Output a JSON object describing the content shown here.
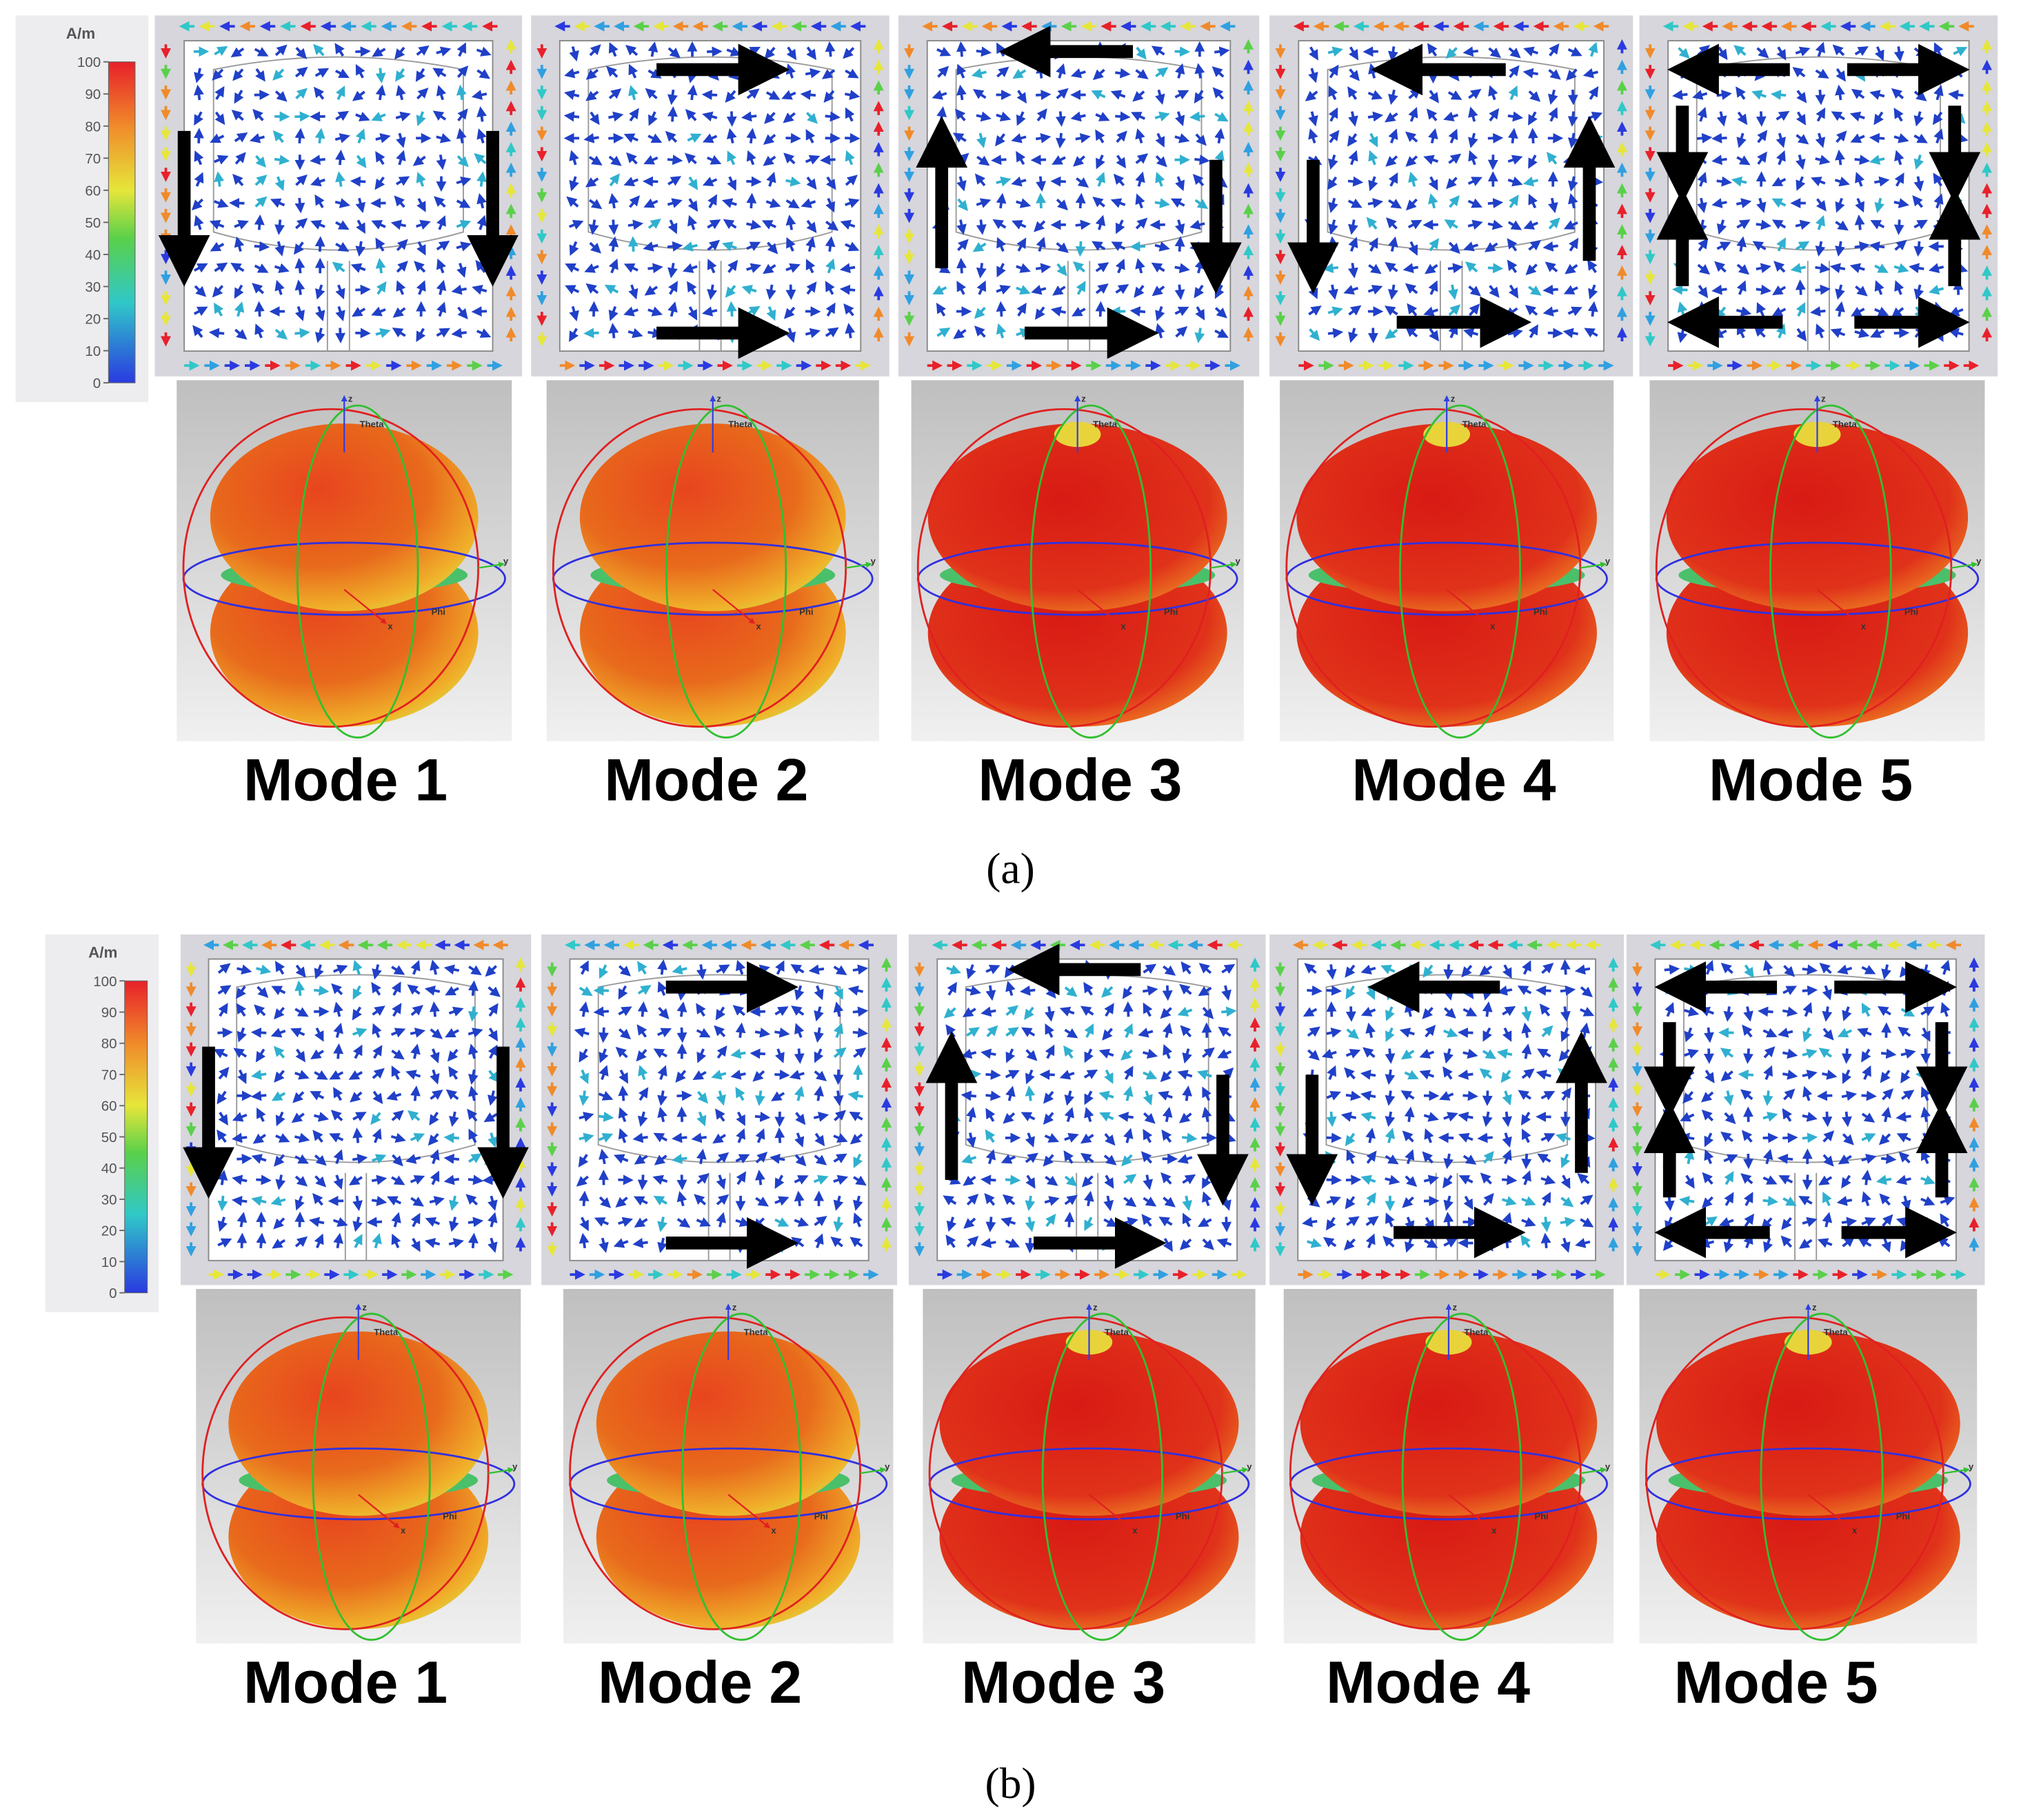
{
  "panels": [
    {
      "caption": "(a)",
      "colorbar": {
        "unit": "A/m",
        "ticks": [
          0,
          10,
          20,
          30,
          40,
          50,
          60,
          70,
          80,
          90,
          100
        ]
      },
      "modes": [
        "Mode 1",
        "Mode 2",
        "Mode 3",
        "Mode 4",
        "Mode 5"
      ]
    },
    {
      "caption": "(b)",
      "colorbar": {
        "unit": "A/m",
        "ticks": [
          0,
          10,
          20,
          30,
          40,
          50,
          60,
          70,
          80,
          90,
          100
        ]
      },
      "modes": [
        "Mode 1",
        "Mode 2",
        "Mode 3",
        "Mode 4",
        "Mode 5"
      ]
    }
  ],
  "pattern_labels": {
    "theta": "Theta",
    "phi": "Phi",
    "x": "x",
    "y": "y",
    "z": "z"
  }
}
